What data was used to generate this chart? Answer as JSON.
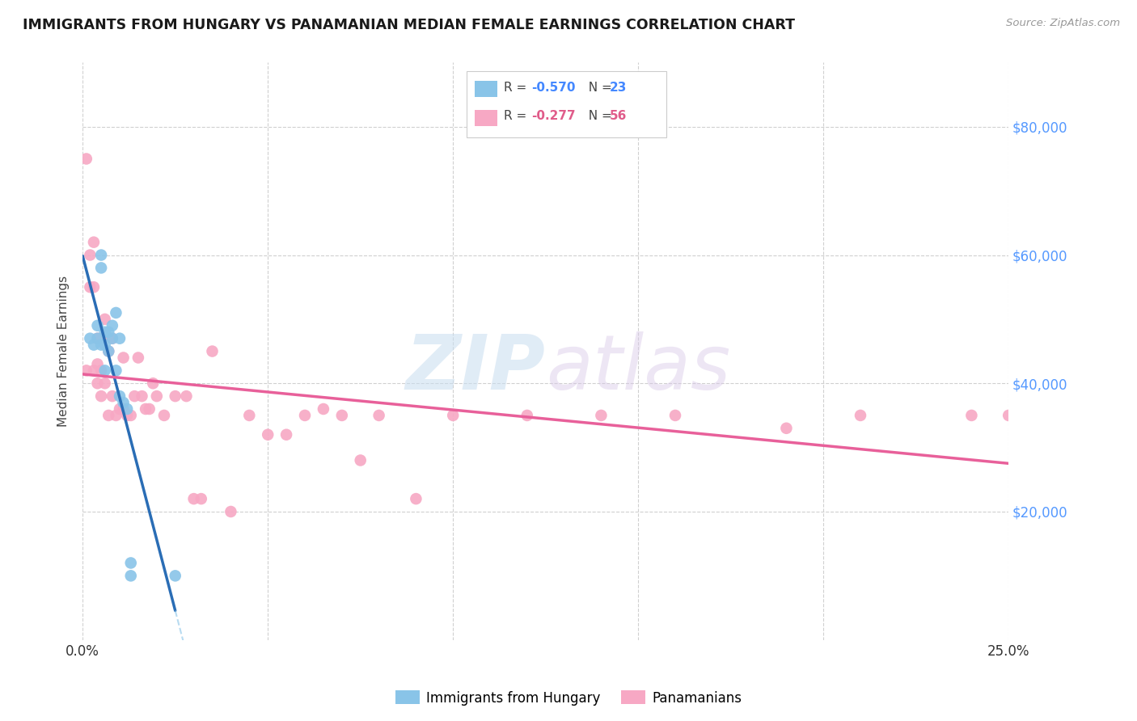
{
  "title": "IMMIGRANTS FROM HUNGARY VS PANAMANIAN MEDIAN FEMALE EARNINGS CORRELATION CHART",
  "source": "Source: ZipAtlas.com",
  "ylabel": "Median Female Earnings",
  "right_yticks": [
    20000,
    40000,
    60000,
    80000
  ],
  "right_ytick_labels": [
    "$20,000",
    "$40,000",
    "$60,000",
    "$80,000"
  ],
  "xlim": [
    0.0,
    0.25
  ],
  "ylim": [
    0,
    90000
  ],
  "r_hungary": -0.57,
  "n_hungary": 23,
  "r_panama": -0.277,
  "n_panama": 56,
  "blue_scatter_color": "#89c4e8",
  "pink_scatter_color": "#f7a8c4",
  "blue_line_color": "#2a6db5",
  "pink_line_color": "#e8609a",
  "watermark_zip": "ZIP",
  "watermark_atlas": "atlas",
  "hungary_x": [
    0.002,
    0.003,
    0.004,
    0.004,
    0.005,
    0.005,
    0.005,
    0.006,
    0.006,
    0.006,
    0.007,
    0.007,
    0.008,
    0.008,
    0.009,
    0.009,
    0.01,
    0.01,
    0.011,
    0.012,
    0.013,
    0.013,
    0.025
  ],
  "hungary_y": [
    47000,
    46000,
    49000,
    47000,
    60000,
    58000,
    46000,
    48000,
    46000,
    42000,
    48000,
    45000,
    47000,
    49000,
    51000,
    42000,
    38000,
    47000,
    37000,
    36000,
    10000,
    12000,
    10000
  ],
  "panama_x": [
    0.001,
    0.001,
    0.002,
    0.002,
    0.003,
    0.003,
    0.003,
    0.004,
    0.004,
    0.004,
    0.005,
    0.005,
    0.005,
    0.006,
    0.006,
    0.007,
    0.007,
    0.008,
    0.008,
    0.009,
    0.01,
    0.011,
    0.011,
    0.012,
    0.013,
    0.014,
    0.015,
    0.016,
    0.017,
    0.018,
    0.019,
    0.02,
    0.022,
    0.025,
    0.028,
    0.03,
    0.032,
    0.035,
    0.04,
    0.045,
    0.05,
    0.055,
    0.06,
    0.065,
    0.07,
    0.075,
    0.08,
    0.09,
    0.1,
    0.12,
    0.14,
    0.16,
    0.19,
    0.21,
    0.24,
    0.25
  ],
  "panama_y": [
    75000,
    42000,
    60000,
    55000,
    62000,
    55000,
    42000,
    47000,
    43000,
    40000,
    47000,
    42000,
    38000,
    50000,
    40000,
    45000,
    35000,
    47000,
    38000,
    35000,
    36000,
    44000,
    36000,
    35000,
    35000,
    38000,
    44000,
    38000,
    36000,
    36000,
    40000,
    38000,
    35000,
    38000,
    38000,
    22000,
    22000,
    45000,
    20000,
    35000,
    32000,
    32000,
    35000,
    36000,
    35000,
    28000,
    35000,
    22000,
    35000,
    35000,
    35000,
    35000,
    33000,
    35000,
    35000,
    35000
  ]
}
